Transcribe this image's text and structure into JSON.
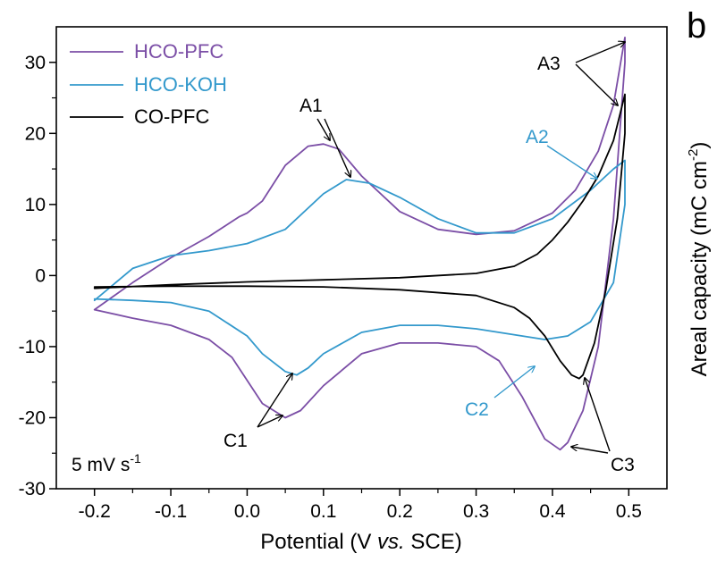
{
  "chart_data": {
    "type": "line",
    "panel_label": "b",
    "xlabel": {
      "pre": "Potential (V ",
      "italic": "vs.",
      "post": " SCE)"
    },
    "ylabel": {
      "pre": "Areal capacity (mC cm",
      "sup": "-2",
      "post": ")"
    },
    "xlim": [
      -0.25,
      0.55
    ],
    "ylim": [
      -30,
      35
    ],
    "xticks": [
      -0.2,
      -0.1,
      0.0,
      0.1,
      0.2,
      0.3,
      0.4,
      0.5
    ],
    "xtick_labels": [
      "-0.2",
      "-0.1",
      "0.0",
      "0.1",
      "0.2",
      "0.3",
      "0.4",
      "0.5"
    ],
    "yticks": [
      -30,
      -20,
      -10,
      0,
      10,
      20,
      30
    ],
    "ytick_labels": [
      "-30",
      "-20",
      "-10",
      "0",
      "10",
      "20",
      "30"
    ],
    "scan_rate": {
      "pre": "5 mV s",
      "sup": "-1"
    },
    "legend_position": "top-left",
    "series": [
      {
        "name": "HCO-PFC",
        "color": "#7b4ea6",
        "x": [
          -0.2,
          -0.15,
          -0.1,
          -0.05,
          -0.01,
          0.0,
          0.02,
          0.05,
          0.08,
          0.1,
          0.12,
          0.15,
          0.2,
          0.25,
          0.3,
          0.35,
          0.4,
          0.43,
          0.46,
          0.48,
          0.495,
          0.495,
          0.48,
          0.46,
          0.44,
          0.42,
          0.41,
          0.39,
          0.36,
          0.33,
          0.3,
          0.25,
          0.2,
          0.15,
          0.1,
          0.07,
          0.05,
          0.02,
          -0.02,
          -0.05,
          -0.1,
          -0.15,
          -0.2
        ],
        "y": [
          -4.8,
          -1.0,
          2.5,
          5.5,
          8.3,
          8.8,
          10.5,
          15.5,
          18.2,
          18.5,
          17.8,
          14.0,
          9.0,
          6.5,
          5.8,
          6.3,
          8.8,
          12.0,
          17.5,
          24.0,
          33.5,
          30.0,
          8.0,
          -10.0,
          -19.0,
          -23.5,
          -24.5,
          -23.0,
          -17.0,
          -12.0,
          -10.0,
          -9.5,
          -9.5,
          -11.0,
          -15.5,
          -19.0,
          -20.0,
          -18.0,
          -11.5,
          -9.0,
          -7.0,
          -6.0,
          -4.8
        ]
      },
      {
        "name": "HCO-KOH",
        "color": "#3399cc",
        "x": [
          -0.2,
          -0.15,
          -0.1,
          -0.05,
          0.0,
          0.05,
          0.1,
          0.13,
          0.16,
          0.2,
          0.25,
          0.3,
          0.35,
          0.4,
          0.45,
          0.48,
          0.495,
          0.495,
          0.48,
          0.45,
          0.42,
          0.39,
          0.36,
          0.3,
          0.25,
          0.2,
          0.15,
          0.1,
          0.08,
          0.065,
          0.05,
          0.02,
          0.0,
          -0.05,
          -0.1,
          -0.15,
          -0.2
        ],
        "y": [
          -3.5,
          1.0,
          2.8,
          3.5,
          4.5,
          6.5,
          11.5,
          13.5,
          13.0,
          11.0,
          8.0,
          6.0,
          6.0,
          8.0,
          12.0,
          15.0,
          16.2,
          10.0,
          -1.0,
          -6.5,
          -8.5,
          -9.0,
          -8.5,
          -7.5,
          -7.0,
          -7.0,
          -8.0,
          -11.0,
          -13.0,
          -14.0,
          -13.5,
          -11.0,
          -8.5,
          -5.0,
          -3.8,
          -3.5,
          -3.3
        ]
      },
      {
        "name": "CO-PFC",
        "color": "#000000",
        "x": [
          -0.2,
          -0.1,
          0.0,
          0.1,
          0.2,
          0.3,
          0.35,
          0.38,
          0.4,
          0.42,
          0.44,
          0.46,
          0.48,
          0.495,
          0.495,
          0.485,
          0.47,
          0.455,
          0.44,
          0.435,
          0.425,
          0.41,
          0.39,
          0.37,
          0.35,
          0.3,
          0.2,
          0.1,
          0.0,
          -0.1,
          -0.2
        ],
        "y": [
          -1.8,
          -1.3,
          -0.9,
          -0.6,
          -0.3,
          0.3,
          1.3,
          3.0,
          5.0,
          7.5,
          10.5,
          14.0,
          19.0,
          25.5,
          20.0,
          8.0,
          -2.0,
          -9.5,
          -14.0,
          -14.5,
          -14.0,
          -12.0,
          -8.5,
          -6.0,
          -4.5,
          -2.8,
          -2.0,
          -1.6,
          -1.5,
          -1.5,
          -1.6
        ]
      }
    ],
    "annotations": [
      {
        "label": "A1",
        "color": "#000000"
      },
      {
        "label": "A2",
        "color": "#3399cc"
      },
      {
        "label": "A3",
        "color": "#000000"
      },
      {
        "label": "C1",
        "color": "#000000"
      },
      {
        "label": "C2",
        "color": "#3399cc"
      },
      {
        "label": "C3",
        "color": "#000000"
      }
    ]
  }
}
